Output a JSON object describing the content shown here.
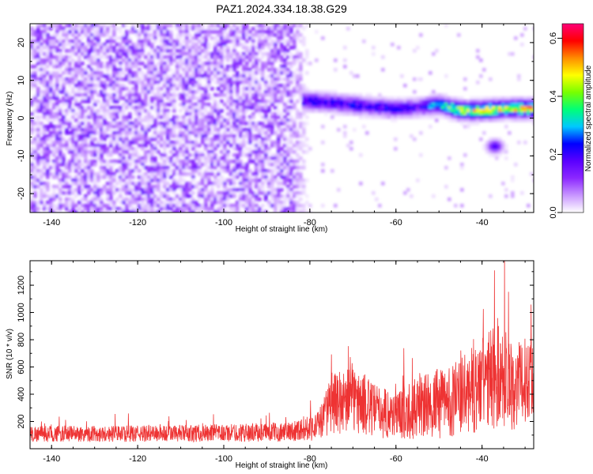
{
  "title": "PAZ1.2024.334.18.38.G29",
  "chart_data": [
    {
      "type": "heatmap",
      "xlabel": "Height of straight line (km)",
      "ylabel": "Frequency (Hz)",
      "xlim": [
        -145,
        -28
      ],
      "ylim": [
        -25,
        25
      ],
      "x_ticks": [
        -140,
        -120,
        -100,
        -80,
        -60,
        -40
      ],
      "y_ticks": [
        -20,
        -10,
        0,
        10,
        20
      ],
      "colorbar": {
        "label": "Normalized spectral amplitude",
        "range": [
          0,
          0.65
        ],
        "ticks": [
          "0.0",
          "0.2",
          "0.4",
          "0.6"
        ],
        "colors": [
          "#ffffff",
          "#c896ff",
          "#8c28ff",
          "#5a00ff",
          "#0000ff",
          "#00c8ff",
          "#00ff78",
          "#78ff00",
          "#ffff00",
          "#ff8c00",
          "#ff0000",
          "#ff0078"
        ]
      },
      "features": {
        "noise_region_x": [
          -145,
          -80
        ],
        "signal_band": [
          {
            "x": -80,
            "freq": 4.5,
            "amp": 0.28
          },
          {
            "x": -74,
            "freq": 4.0,
            "amp": 0.25
          },
          {
            "x": -70,
            "freq": 3.5,
            "amp": 0.27
          },
          {
            "x": -65,
            "freq": 3.0,
            "amp": 0.25
          },
          {
            "x": -60,
            "freq": 2.5,
            "amp": 0.26
          },
          {
            "x": -55,
            "freq": 2.8,
            "amp": 0.22
          },
          {
            "x": -50,
            "freq": 3.5,
            "amp": 0.38
          },
          {
            "x": -45,
            "freq": 2.0,
            "amp": 0.55
          },
          {
            "x": -40,
            "freq": 2.0,
            "amp": 0.6
          },
          {
            "x": -35,
            "freq": 2.5,
            "amp": 0.55
          },
          {
            "x": -30,
            "freq": 2.5,
            "amp": 0.6
          }
        ],
        "secondary_blob": {
          "x": -37,
          "freq": -7.5,
          "amp": 0.2
        }
      }
    },
    {
      "type": "line",
      "xlabel": "Height of straight line (km)",
      "ylabel": "SNR (10 * v/v)",
      "xlim": [
        -145,
        -28
      ],
      "ylim": [
        0,
        1380
      ],
      "x_ticks": [
        -140,
        -120,
        -100,
        -80,
        -60,
        -40
      ],
      "y_ticks": [
        200,
        400,
        600,
        800,
        1000,
        1200
      ],
      "line_color": "#ee3333",
      "envelope": [
        {
          "x": -145,
          "mean": 110,
          "spread": 60
        },
        {
          "x": -120,
          "mean": 110,
          "spread": 60
        },
        {
          "x": -100,
          "mean": 115,
          "spread": 65
        },
        {
          "x": -85,
          "mean": 125,
          "spread": 70
        },
        {
          "x": -78,
          "mean": 170,
          "spread": 110
        },
        {
          "x": -75,
          "mean": 330,
          "spread": 220
        },
        {
          "x": -70,
          "mean": 360,
          "spread": 250
        },
        {
          "x": -65,
          "mean": 280,
          "spread": 200
        },
        {
          "x": -60,
          "mean": 250,
          "spread": 180
        },
        {
          "x": -55,
          "mean": 300,
          "spread": 230
        },
        {
          "x": -50,
          "mean": 330,
          "spread": 260
        },
        {
          "x": -45,
          "mean": 380,
          "spread": 280
        },
        {
          "x": -40,
          "mean": 470,
          "spread": 350
        },
        {
          "x": -36,
          "mean": 560,
          "spread": 420
        },
        {
          "x": -32,
          "mean": 450,
          "spread": 320
        },
        {
          "x": -28,
          "mean": 560,
          "spread": 300
        }
      ]
    }
  ]
}
